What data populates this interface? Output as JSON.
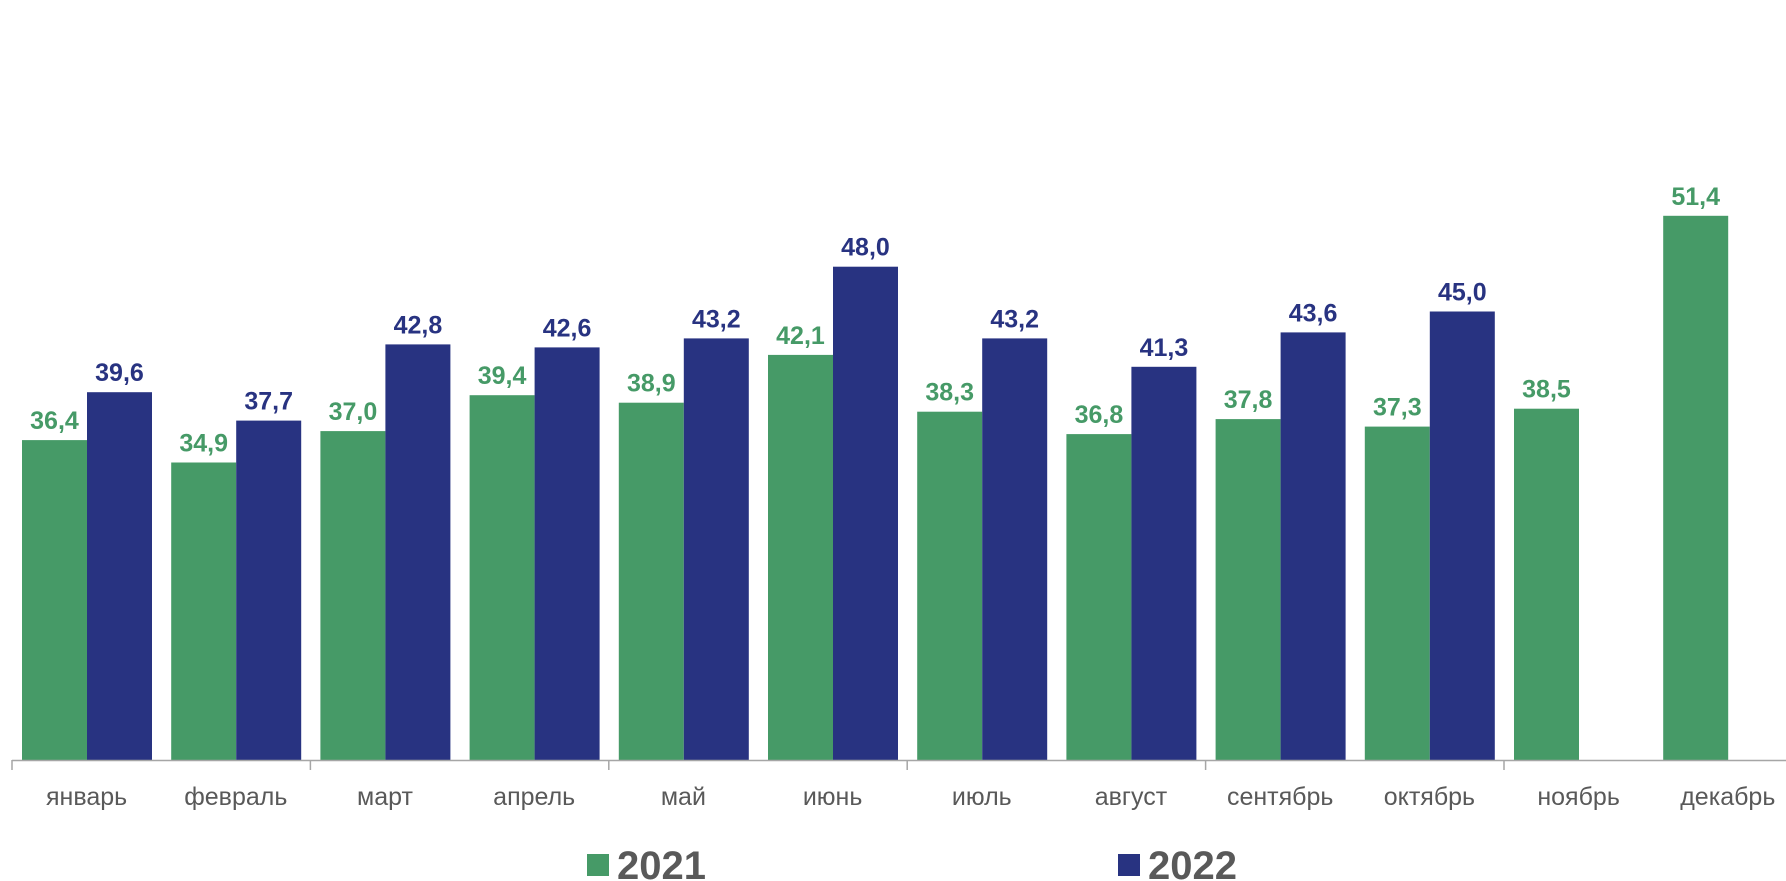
{
  "chart_data": {
    "type": "bar",
    "categories": [
      "январь",
      "февраль",
      "март",
      "апрель",
      "май",
      "июнь",
      "июль",
      "август",
      "сентябрь",
      "октябрь",
      "ноябрь",
      "декабрь"
    ],
    "series": [
      {
        "name": "2021",
        "color": "#469a67",
        "values": [
          36.4,
          34.9,
          37.0,
          39.4,
          38.9,
          42.1,
          38.3,
          36.8,
          37.8,
          37.3,
          38.5,
          51.4
        ],
        "labels": [
          "36,4",
          "34,9",
          "37,0",
          "39,4",
          "38,9",
          "42,1",
          "38,3",
          "36,8",
          "37,8",
          "37,3",
          "38,5",
          "51,4"
        ]
      },
      {
        "name": "2022",
        "color": "#283381",
        "values": [
          39.6,
          37.7,
          42.8,
          42.6,
          43.2,
          48.0,
          43.2,
          41.3,
          43.6,
          45.0,
          null,
          null
        ],
        "labels": [
          "39,6",
          "37,7",
          "42,8",
          "42,6",
          "43,2",
          "48,0",
          "43,2",
          "41,3",
          "43,6",
          "45,0",
          "",
          ""
        ]
      }
    ],
    "ylim": [
      15,
      52
    ],
    "grid": false,
    "legend_position": "bottom"
  }
}
